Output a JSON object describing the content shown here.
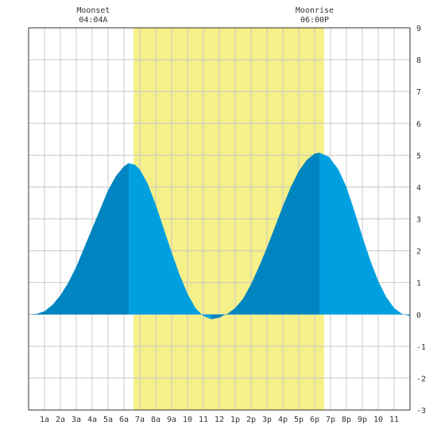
{
  "chart_data": {
    "type": "area",
    "title": "",
    "xlabel": "",
    "ylabel": "",
    "xlim": [
      0,
      24
    ],
    "ylim": [
      -3,
      9
    ],
    "grid": true,
    "x_tick_labels": [
      "1a",
      "2a",
      "3a",
      "4a",
      "5a",
      "6a",
      "7a",
      "8a",
      "9a",
      "10",
      "11",
      "12",
      "1p",
      "2p",
      "3p",
      "4p",
      "5p",
      "6p",
      "7p",
      "8p",
      "9p",
      "10",
      "11"
    ],
    "y_ticks": [
      -3,
      -2,
      -1,
      0,
      1,
      2,
      3,
      4,
      5,
      6,
      7,
      8,
      9
    ],
    "daylight": {
      "start": 6.6,
      "end": 18.6
    },
    "annotations": [
      {
        "label": "Moonset",
        "time": "04:04A",
        "x": 4.07
      },
      {
        "label": "Moonrise",
        "time": "06:00P",
        "x": 18.0
      }
    ],
    "series": [
      {
        "x": [
          0,
          0.5,
          1,
          1.5,
          2,
          2.5,
          3,
          3.5,
          4,
          4.5,
          5,
          5.5,
          6,
          6.3,
          6.7,
          7.0,
          7.5,
          8,
          8.5,
          9,
          9.5,
          10,
          10.5,
          11,
          11.5,
          12,
          12.2,
          12.5,
          13,
          13.5,
          14,
          14.5,
          15,
          15.5,
          16,
          16.5,
          17,
          17.5,
          18,
          18.3,
          18.9,
          19.5,
          20,
          20.5,
          21,
          21.5,
          22,
          22.5,
          23,
          23.5,
          24
        ],
        "y": [
          0.0,
          0.02,
          0.1,
          0.3,
          0.6,
          1.0,
          1.5,
          2.1,
          2.7,
          3.3,
          3.9,
          4.35,
          4.65,
          4.75,
          4.7,
          4.55,
          4.1,
          3.45,
          2.7,
          1.95,
          1.25,
          0.65,
          0.2,
          -0.05,
          -0.15,
          -0.1,
          -0.05,
          0.02,
          0.2,
          0.5,
          0.95,
          1.5,
          2.1,
          2.75,
          3.4,
          4.0,
          4.5,
          4.85,
          5.05,
          5.08,
          4.95,
          4.55,
          4.0,
          3.25,
          2.45,
          1.7,
          1.05,
          0.55,
          0.2,
          0.02,
          -0.05
        ]
      }
    ],
    "colors": {
      "daylight": "#f5f088",
      "tide_dark": "#0085c0",
      "tide_light": "#00a0e0",
      "grid": "#c8c8c8",
      "border": "#333333"
    }
  }
}
